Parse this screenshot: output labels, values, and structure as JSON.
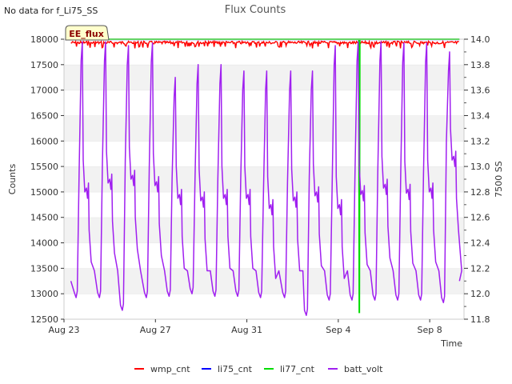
{
  "header": {
    "no_data_note": "No data for f_Li75_SS"
  },
  "chart_data": {
    "type": "line",
    "title": "Flux Counts",
    "badge": "EE_flux",
    "xlabel": "Time",
    "ylabel_left": "Counts",
    "ylabel_right": "7500 SS",
    "x_unit": "days since Aug 23",
    "xlim": [
      0,
      17.5
    ],
    "x_ticks": [
      {
        "value": 0,
        "label": "Aug 23"
      },
      {
        "value": 4,
        "label": "Aug 27"
      },
      {
        "value": 8,
        "label": "Aug 31"
      },
      {
        "value": 12,
        "label": "Sep 4"
      },
      {
        "value": 16,
        "label": "Sep 8"
      }
    ],
    "ylim_left": [
      12500,
      18000
    ],
    "y_ticks_left": [
      12500,
      13000,
      13500,
      14000,
      14500,
      15000,
      15500,
      16000,
      16500,
      17000,
      17500,
      18000
    ],
    "ylim_right": [
      11.8,
      14.0
    ],
    "y_ticks_right": [
      11.8,
      12.0,
      12.2,
      12.4,
      12.6,
      12.8,
      13.0,
      13.2,
      13.4,
      13.6,
      13.8,
      14.0
    ],
    "grid": "horizontal bands",
    "legend_position": "bottom-center",
    "legend": [
      "wmp_cnt",
      "li75_cnt",
      "li77_cnt",
      "batt_volt"
    ],
    "colors": {
      "wmp_cnt": "#ff0000",
      "li75_cnt": "#0000ff",
      "li77_cnt": "#00dd00",
      "batt_volt": "#a020f0"
    },
    "series": [
      {
        "name": "wmp_cnt",
        "axis": "left",
        "description": "near-constant upper band",
        "baseline": 17960,
        "dips_to": 17820,
        "x_range": [
          0.3,
          17.3
        ]
      },
      {
        "name": "li75_cnt",
        "axis": "left",
        "baseline": 17990,
        "x_range": [
          0.3,
          17.3
        ]
      },
      {
        "name": "li77_cnt",
        "axis": "left",
        "baseline": 18000,
        "x_range": [
          0.3,
          17.3
        ],
        "spike": {
          "x": 12.92,
          "low": 12620
        }
      },
      {
        "name": "batt_volt",
        "axis": "right",
        "start": {
          "x": 0.3,
          "y": 12.1
        },
        "end": {
          "x": 17.3,
          "y": 12.1
        },
        "cycles": [
          {
            "t": 0.53,
            "low": 11.97,
            "top": 13.98,
            "plateau": 12.75
          },
          {
            "t": 1.55,
            "low": 11.97,
            "top": 13.98,
            "plateau": 12.82
          },
          {
            "t": 2.55,
            "low": 11.87,
            "top": 13.95,
            "plateau": 12.85
          },
          {
            "t": 3.6,
            "low": 11.97,
            "top": 13.97,
            "plateau": 12.8
          },
          {
            "t": 4.6,
            "low": 11.98,
            "top": 13.7,
            "plateau": 12.7
          },
          {
            "t": 5.6,
            "low": 12.0,
            "top": 13.8,
            "plateau": 12.68
          },
          {
            "t": 6.6,
            "low": 11.98,
            "top": 13.8,
            "plateau": 12.7
          },
          {
            "t": 7.6,
            "low": 11.98,
            "top": 13.75,
            "plateau": 12.7
          },
          {
            "t": 8.6,
            "low": 11.97,
            "top": 13.75,
            "plateau": 12.62
          },
          {
            "t": 9.65,
            "low": 11.97,
            "top": 13.75,
            "plateau": 12.68
          },
          {
            "t": 10.6,
            "low": 11.83,
            "top": 13.75,
            "plateau": 12.72
          },
          {
            "t": 11.6,
            "low": 11.95,
            "top": 13.95,
            "plateau": 12.62
          },
          {
            "t": 12.6,
            "low": 11.95,
            "top": 13.98,
            "plateau": 12.73
          },
          {
            "t": 13.6,
            "low": 11.95,
            "top": 13.98,
            "plateau": 12.78
          },
          {
            "t": 14.6,
            "low": 11.95,
            "top": 13.97,
            "plateau": 12.74
          },
          {
            "t": 15.6,
            "low": 11.95,
            "top": 13.97,
            "plateau": 12.75
          },
          {
            "t": 16.6,
            "low": 11.93,
            "top": 13.9,
            "plateau": 13.0
          }
        ]
      }
    ]
  }
}
